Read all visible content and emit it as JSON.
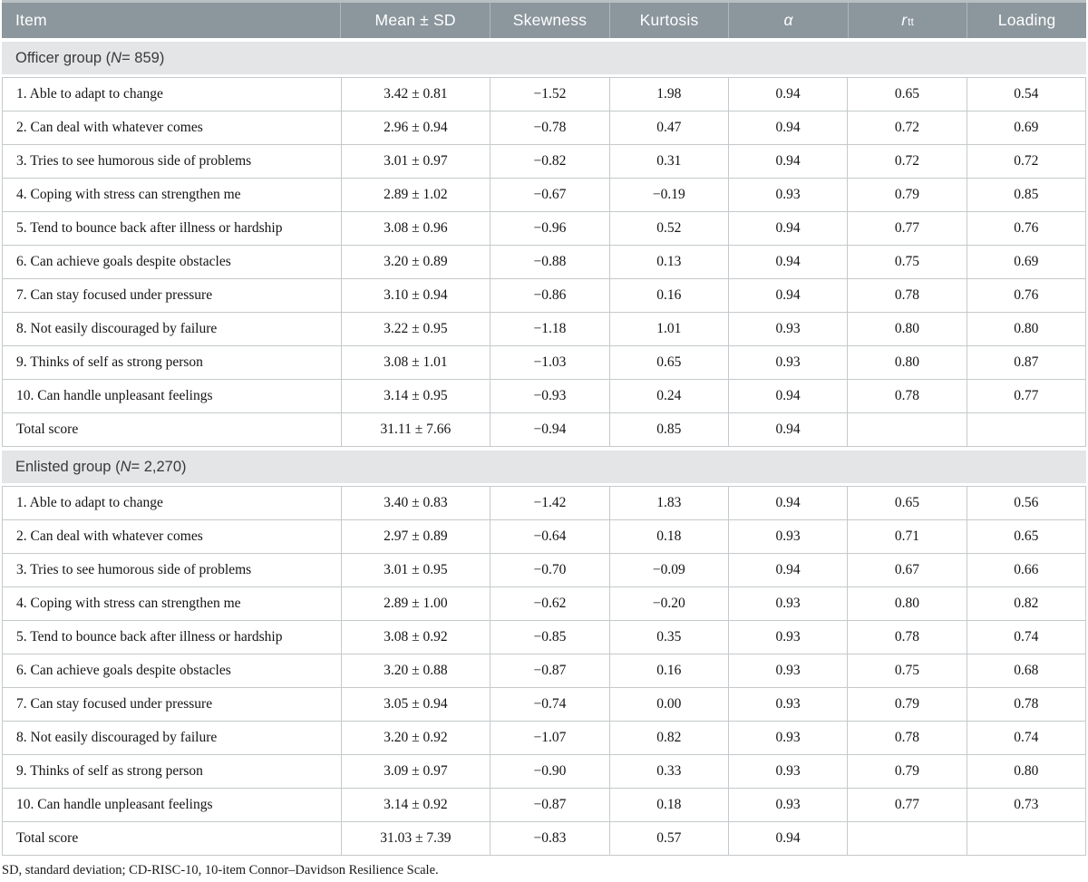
{
  "header": {
    "columns": {
      "item": "Item",
      "mean_sd": "Mean ± SD",
      "skewness": "Skewness",
      "kurtosis": "Kurtosis",
      "alpha": "α",
      "rtt_base": "r",
      "rtt_sub": "tt",
      "loading": "Loading"
    }
  },
  "sections": [
    {
      "title_prefix": "Officer group (",
      "title_n": "N",
      "title_rest": " = 859)",
      "rows": [
        [
          "1. Able to adapt to change",
          "3.42 ± 0.81",
          "−1.52",
          "1.98",
          "0.94",
          "0.65",
          "0.54"
        ],
        [
          "2. Can deal with whatever comes",
          "2.96 ± 0.94",
          "−0.78",
          "0.47",
          "0.94",
          "0.72",
          "0.69"
        ],
        [
          "3. Tries to see humorous side of problems",
          "3.01 ± 0.97",
          "−0.82",
          "0.31",
          "0.94",
          "0.72",
          "0.72"
        ],
        [
          "4. Coping with stress can strengthen me",
          "2.89 ± 1.02",
          "−0.67",
          "−0.19",
          "0.93",
          "0.79",
          "0.85"
        ],
        [
          "5. Tend to bounce back after illness or hardship",
          "3.08 ± 0.96",
          "−0.96",
          "0.52",
          "0.94",
          "0.77",
          "0.76"
        ],
        [
          "6. Can achieve goals despite obstacles",
          "3.20 ± 0.89",
          "−0.88",
          "0.13",
          "0.94",
          "0.75",
          "0.69"
        ],
        [
          "7. Can stay focused under pressure",
          "3.10 ± 0.94",
          "−0.86",
          "0.16",
          "0.94",
          "0.78",
          "0.76"
        ],
        [
          "8. Not easily discouraged by failure",
          "3.22 ± 0.95",
          "−1.18",
          "1.01",
          "0.93",
          "0.80",
          "0.80"
        ],
        [
          "9. Thinks of self as strong person",
          "3.08 ± 1.01",
          "−1.03",
          "0.65",
          "0.93",
          "0.80",
          "0.87"
        ],
        [
          "10. Can handle unpleasant feelings",
          "3.14 ± 0.95",
          "−0.93",
          "0.24",
          "0.94",
          "0.78",
          "0.77"
        ],
        [
          "Total score",
          "31.11 ± 7.66",
          "−0.94",
          "0.85",
          "0.94",
          "",
          ""
        ]
      ]
    },
    {
      "title_prefix": "Enlisted group (",
      "title_n": "N",
      "title_rest": " = 2,270)",
      "rows": [
        [
          "1. Able to adapt to change",
          "3.40 ± 0.83",
          "−1.42",
          "1.83",
          "0.94",
          "0.65",
          "0.56"
        ],
        [
          "2. Can deal with whatever comes",
          "2.97 ± 0.89",
          "−0.64",
          "0.18",
          "0.93",
          "0.71",
          "0.65"
        ],
        [
          "3. Tries to see humorous side of problems",
          "3.01 ± 0.95",
          "−0.70",
          "−0.09",
          "0.94",
          "0.67",
          "0.66"
        ],
        [
          "4. Coping with stress can strengthen me",
          "2.89 ± 1.00",
          "−0.62",
          "−0.20",
          "0.93",
          "0.80",
          "0.82"
        ],
        [
          "5. Tend to bounce back after illness or hardship",
          "3.08 ± 0.92",
          "−0.85",
          "0.35",
          "0.93",
          "0.78",
          "0.74"
        ],
        [
          "6. Can achieve goals despite obstacles",
          "3.20 ± 0.88",
          "−0.87",
          "0.16",
          "0.93",
          "0.75",
          "0.68"
        ],
        [
          "7. Can stay focused under pressure",
          "3.05 ± 0.94",
          "−0.74",
          "0.00",
          "0.93",
          "0.79",
          "0.78"
        ],
        [
          "8. Not easily discouraged by failure",
          "3.20 ± 0.92",
          "−1.07",
          "0.82",
          "0.93",
          "0.78",
          "0.74"
        ],
        [
          "9. Thinks of self as strong person",
          "3.09 ± 0.97",
          "−0.90",
          "0.33",
          "0.93",
          "0.79",
          "0.80"
        ],
        [
          "10. Can handle unpleasant feelings",
          "3.14 ± 0.92",
          "−0.87",
          "0.18",
          "0.93",
          "0.77",
          "0.73"
        ],
        [
          "Total score",
          "31.03 ± 7.39",
          "−0.83",
          "0.57",
          "0.94",
          "",
          ""
        ]
      ]
    }
  ],
  "footnote": "SD, standard deviation; CD-RISC-10, 10-item Connor–Davidson Resilience Scale.",
  "colors": {
    "header_bg": "#8C969D",
    "header_text": "#FFFFFF",
    "section_bg": "#E3E5E6",
    "border": "#C5C9CB",
    "body_text": "#141414"
  }
}
